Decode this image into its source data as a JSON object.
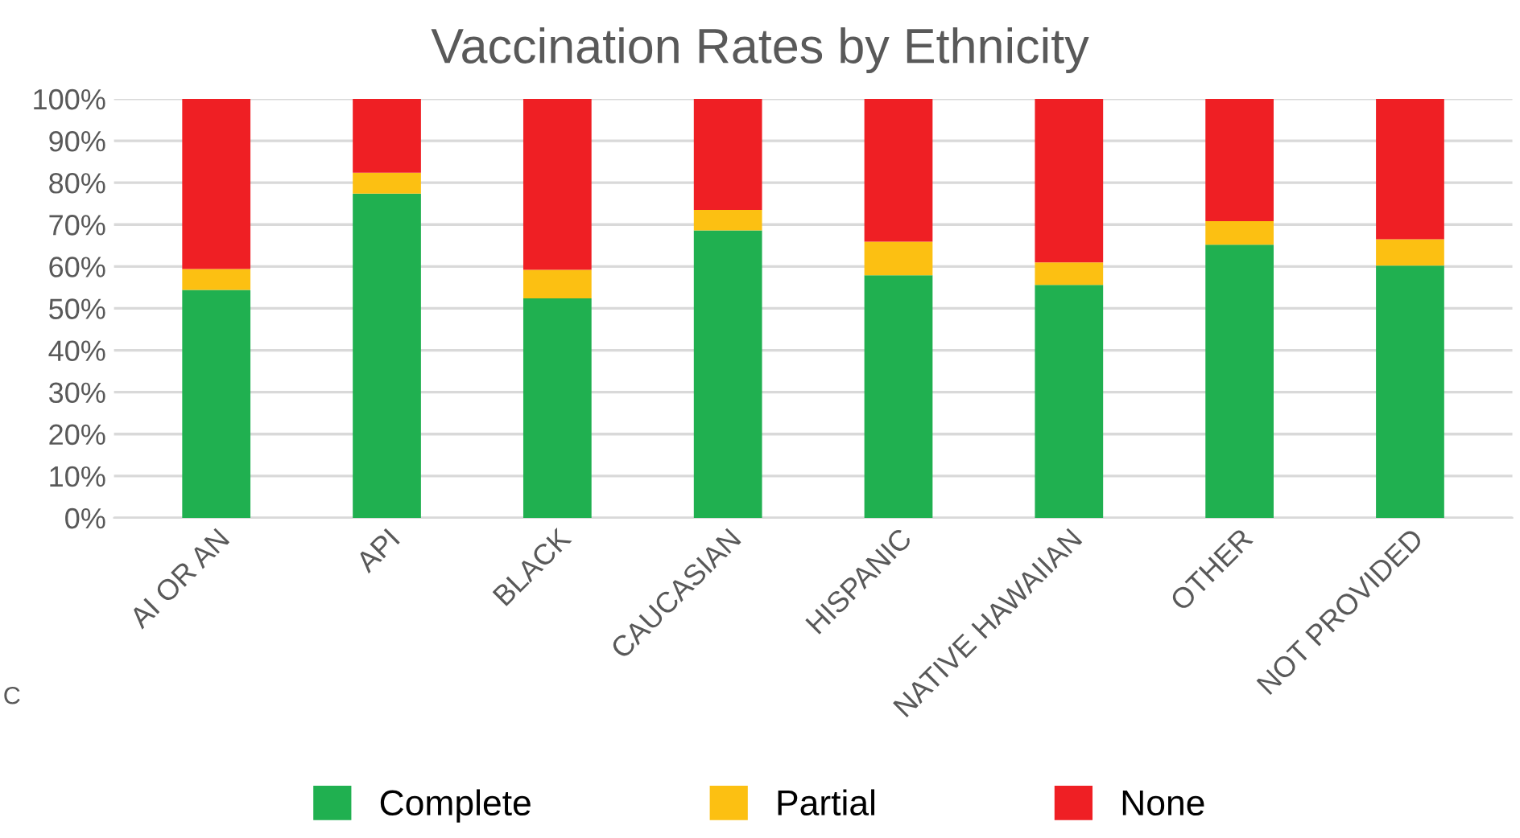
{
  "chart_data": {
    "type": "bar",
    "title": "Vaccination Rates by Ethnicity",
    "stacked": true,
    "categories": [
      "AI OR AN",
      "API",
      "BLACK",
      "CAUCASIAN",
      "HISPANIC",
      "NATIVE HAWAIIAN",
      "OTHER",
      "NOT PROVIDED"
    ],
    "series": [
      {
        "name": "Complete",
        "color": "#20b050",
        "values": [
          54.4,
          77.4,
          52.4,
          68.6,
          57.9,
          55.6,
          65.2,
          60.2
        ]
      },
      {
        "name": "Partial",
        "color": "#fcc012",
        "values": [
          5.0,
          5.0,
          6.8,
          4.9,
          8.0,
          5.4,
          5.6,
          6.3
        ]
      },
      {
        "name": "None",
        "color": "#ef1f24",
        "values": [
          40.6,
          17.6,
          40.8,
          26.5,
          34.1,
          39.0,
          29.2,
          33.5
        ]
      }
    ],
    "ylim": [
      0,
      100
    ],
    "yticks": [
      {
        "value": 0,
        "label": "0%"
      },
      {
        "value": 10,
        "label": "10%"
      },
      {
        "value": 20,
        "label": "20%"
      },
      {
        "value": 30,
        "label": "30%"
      },
      {
        "value": 40,
        "label": "40%"
      },
      {
        "value": 50,
        "label": "50%"
      },
      {
        "value": 60,
        "label": "60%"
      },
      {
        "value": 70,
        "label": "70%"
      },
      {
        "value": 80,
        "label": "80%"
      },
      {
        "value": 90,
        "label": "90%"
      },
      {
        "value": 100,
        "label": "100%"
      }
    ],
    "grid": "y",
    "legend": "bottom",
    "annotations": [
      "C"
    ]
  }
}
